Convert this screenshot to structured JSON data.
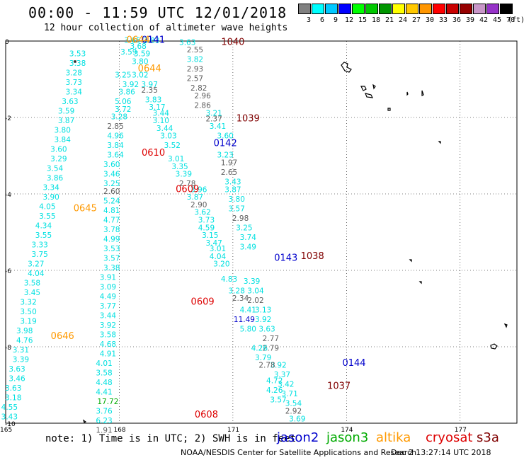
{
  "header": {
    "title": "00:00 - 11:59 UTC 12/01/2018",
    "subtitle": "12 hour collection of altimeter wave heights"
  },
  "legend": {
    "unit": "(ft)",
    "bins": [
      {
        "label": "3",
        "color": "#808080"
      },
      {
        "label": "6",
        "color": "#00ffff"
      },
      {
        "label": "9",
        "color": "#00c8ff"
      },
      {
        "label": "12",
        "color": "#0000ff"
      },
      {
        "label": "15",
        "color": "#00ff00"
      },
      {
        "label": "18",
        "color": "#00c800"
      },
      {
        "label": "21",
        "color": "#009600"
      },
      {
        "label": "24",
        "color": "#ffff00"
      },
      {
        "label": "27",
        "color": "#ffc800"
      },
      {
        "label": "30",
        "color": "#ff9600"
      },
      {
        "label": "33",
        "color": "#ff0000"
      },
      {
        "label": "36",
        "color": "#c80000"
      },
      {
        "label": "39",
        "color": "#960000"
      },
      {
        "label": "42",
        "color": "#c896c8"
      },
      {
        "label": "45",
        "color": "#9632c8"
      },
      {
        "label": "70",
        "color": "#000000"
      }
    ]
  },
  "map": {
    "lat_labels": [
      "0",
      "-2",
      "-4",
      "-6",
      "-8",
      "-10"
    ],
    "lon_labels": [
      "165",
      "168",
      "171",
      "174",
      "177"
    ],
    "lat_range": [
      0,
      -10
    ],
    "lon_range": [
      165,
      179
    ]
  },
  "colors": {
    "cyan": "#00e0e0",
    "gray": "#606060",
    "blue": "#0000cc",
    "green": "#00aa00",
    "orange": "#ff9900",
    "red": "#dd0000",
    "darkred": "#800000"
  },
  "passes": [
    {
      "label": "0141",
      "lon": 168.9,
      "lat": -0.05,
      "color": "#0000cc"
    },
    {
      "label": "0644",
      "lon": 168.5,
      "lat": -0.05,
      "color": "#ff9900"
    },
    {
      "label": "1040",
      "lon": 171.0,
      "lat": -0.1,
      "color": "#800000"
    },
    {
      "label": "0644",
      "lon": 168.8,
      "lat": -0.8,
      "color": "#ff9900"
    },
    {
      "label": "1039",
      "lon": 171.4,
      "lat": -2.1,
      "color": "#800000"
    },
    {
      "label": "0142",
      "lon": 170.8,
      "lat": -2.75,
      "color": "#0000cc"
    },
    {
      "label": "0610",
      "lon": 168.9,
      "lat": -3.0,
      "color": "#dd0000"
    },
    {
      "label": "0609",
      "lon": 169.8,
      "lat": -3.95,
      "color": "#dd0000"
    },
    {
      "label": "0645",
      "lon": 167.1,
      "lat": -4.45,
      "color": "#ff9900"
    },
    {
      "label": "1038",
      "lon": 173.1,
      "lat": -5.7,
      "color": "#800000"
    },
    {
      "label": "0143",
      "lon": 172.4,
      "lat": -5.75,
      "color": "#0000cc"
    },
    {
      "label": "0609",
      "lon": 170.2,
      "lat": -6.9,
      "color": "#dd0000"
    },
    {
      "label": "0646",
      "lon": 166.5,
      "lat": -7.8,
      "color": "#ff9900"
    },
    {
      "label": "0144",
      "lon": 174.2,
      "lat": -8.5,
      "color": "#0000cc"
    },
    {
      "label": "1037",
      "lon": 173.8,
      "lat": -9.1,
      "color": "#800000"
    },
    {
      "label": "0608",
      "lon": 170.3,
      "lat": -9.85,
      "color": "#dd0000"
    }
  ],
  "readings": [
    {
      "v": "3.83",
      "lon": 168.85,
      "lat": -0.06,
      "c": "cyan"
    },
    {
      "v": "3.63",
      "lon": 169.8,
      "lat": -0.1,
      "c": "cyan"
    },
    {
      "v": "2.55",
      "lon": 170.0,
      "lat": -0.3,
      "c": "gray"
    },
    {
      "v": "3.82",
      "lon": 170.0,
      "lat": -0.55,
      "c": "cyan"
    },
    {
      "v": "2.93",
      "lon": 170.0,
      "lat": -0.8,
      "c": "gray"
    },
    {
      "v": "2.57",
      "lon": 170.0,
      "lat": -1.05,
      "c": "gray"
    },
    {
      "v": "2.82",
      "lon": 170.1,
      "lat": -1.3,
      "c": "gray"
    },
    {
      "v": "2.96",
      "lon": 170.2,
      "lat": -1.5,
      "c": "gray"
    },
    {
      "v": "2.86",
      "lon": 170.2,
      "lat": -1.75,
      "c": "gray"
    },
    {
      "v": "3.21",
      "lon": 170.5,
      "lat": -1.95,
      "c": "cyan"
    },
    {
      "v": "2.37",
      "lon": 170.5,
      "lat": -2.1,
      "c": "gray"
    },
    {
      "v": "3.41",
      "lon": 170.6,
      "lat": -2.3,
      "c": "cyan"
    },
    {
      "v": "3.60",
      "lon": 170.8,
      "lat": -2.55,
      "c": "cyan"
    },
    {
      "v": "3.23",
      "lon": 170.8,
      "lat": -3.05,
      "c": "cyan"
    },
    {
      "v": "1.97",
      "lon": 170.9,
      "lat": -3.25,
      "c": "gray"
    },
    {
      "v": "2.65",
      "lon": 170.9,
      "lat": -3.5,
      "c": "gray"
    },
    {
      "v": "3.43",
      "lon": 171.0,
      "lat": -3.75,
      "c": "cyan"
    },
    {
      "v": "3.87",
      "lon": 171.0,
      "lat": -3.95,
      "c": "cyan"
    },
    {
      "v": "3.80",
      "lon": 171.1,
      "lat": -4.2,
      "c": "cyan"
    },
    {
      "v": "3.57",
      "lon": 171.1,
      "lat": -4.45,
      "c": "cyan"
    },
    {
      "v": "2.98",
      "lon": 171.2,
      "lat": -4.7,
      "c": "gray"
    },
    {
      "v": "3.25",
      "lon": 171.3,
      "lat": -4.95,
      "c": "cyan"
    },
    {
      "v": "3.74",
      "lon": 171.4,
      "lat": -5.2,
      "c": "cyan"
    },
    {
      "v": "3.49",
      "lon": 171.4,
      "lat": -5.45,
      "c": "cyan"
    },
    {
      "v": "3.39",
      "lon": 171.5,
      "lat": -6.35,
      "c": "cyan"
    },
    {
      "v": "3.04",
      "lon": 171.6,
      "lat": -6.6,
      "c": "cyan"
    },
    {
      "v": "2.02",
      "lon": 171.6,
      "lat": -6.85,
      "c": "gray"
    },
    {
      "v": "3.13",
      "lon": 171.8,
      "lat": -7.1,
      "c": "cyan"
    },
    {
      "v": "3.92",
      "lon": 171.8,
      "lat": -7.35,
      "c": "cyan"
    },
    {
      "v": "3.63",
      "lon": 171.9,
      "lat": -7.6,
      "c": "cyan"
    },
    {
      "v": "2.77",
      "lon": 172.0,
      "lat": -7.85,
      "c": "gray"
    },
    {
      "v": "2.79",
      "lon": 172.0,
      "lat": -8.1,
      "c": "gray"
    },
    {
      "v": "3.92",
      "lon": 172.2,
      "lat": -8.55,
      "c": "cyan"
    },
    {
      "v": "3.37",
      "lon": 172.3,
      "lat": -8.8,
      "c": "cyan"
    },
    {
      "v": "3.42",
      "lon": 172.4,
      "lat": -9.05,
      "c": "cyan"
    },
    {
      "v": "3.71",
      "lon": 172.5,
      "lat": -9.3,
      "c": "cyan"
    },
    {
      "v": "3.54",
      "lon": 172.6,
      "lat": -9.55,
      "c": "cyan"
    },
    {
      "v": "2.92",
      "lon": 172.6,
      "lat": -9.75,
      "c": "gray"
    },
    {
      "v": "3.69",
      "lon": 172.7,
      "lat": -9.95,
      "c": "cyan"
    },
    {
      "v": "3.65",
      "lon": 168.35,
      "lat": -0.05,
      "c": "cyan"
    },
    {
      "v": "3.68",
      "lon": 168.5,
      "lat": -0.2,
      "c": "cyan"
    },
    {
      "v": "3.59",
      "lon": 168.25,
      "lat": -0.35,
      "c": "cyan"
    },
    {
      "v": "3.59",
      "lon": 168.6,
      "lat": -0.4,
      "c": "cyan"
    },
    {
      "v": "3.80",
      "lon": 168.55,
      "lat": -0.6,
      "c": "cyan"
    },
    {
      "v": "3.25",
      "lon": 168.1,
      "lat": -0.95,
      "c": "cyan"
    },
    {
      "v": "3.02",
      "lon": 168.55,
      "lat": -0.95,
      "c": "cyan"
    },
    {
      "v": "3.92",
      "lon": 168.3,
      "lat": -1.2,
      "c": "cyan"
    },
    {
      "v": "3.97",
      "lon": 168.8,
      "lat": -1.2,
      "c": "cyan"
    },
    {
      "v": "3.86",
      "lon": 168.2,
      "lat": -1.4,
      "c": "cyan"
    },
    {
      "v": "2.35",
      "lon": 168.8,
      "lat": -1.35,
      "c": "gray"
    },
    {
      "v": "5.06",
      "lon": 168.1,
      "lat": -1.65,
      "c": "cyan"
    },
    {
      "v": "3.83",
      "lon": 168.9,
      "lat": -1.6,
      "c": "cyan"
    },
    {
      "v": "3.72",
      "lon": 168.1,
      "lat": -1.85,
      "c": "cyan"
    },
    {
      "v": "3.17",
      "lon": 169.0,
      "lat": -1.8,
      "c": "cyan"
    },
    {
      "v": "3.28",
      "lon": 168.0,
      "lat": -2.05,
      "c": "cyan"
    },
    {
      "v": "3.44",
      "lon": 169.1,
      "lat": -1.95,
      "c": "cyan"
    },
    {
      "v": "2.85",
      "lon": 167.9,
      "lat": -2.3,
      "c": "gray"
    },
    {
      "v": "3.10",
      "lon": 169.1,
      "lat": -2.15,
      "c": "cyan"
    },
    {
      "v": "4.96",
      "lon": 167.9,
      "lat": -2.55,
      "c": "cyan"
    },
    {
      "v": "3.44",
      "lon": 169.2,
      "lat": -2.35,
      "c": "cyan"
    },
    {
      "v": "3.84",
      "lon": 167.9,
      "lat": -2.8,
      "c": "cyan"
    },
    {
      "v": "3.03",
      "lon": 169.3,
      "lat": -2.55,
      "c": "cyan"
    },
    {
      "v": "3.64",
      "lon": 167.9,
      "lat": -3.05,
      "c": "cyan"
    },
    {
      "v": "3.52",
      "lon": 169.4,
      "lat": -2.8,
      "c": "cyan"
    },
    {
      "v": "3.60",
      "lon": 167.8,
      "lat": -3.3,
      "c": "cyan"
    },
    {
      "v": "3.01",
      "lon": 169.5,
      "lat": -3.15,
      "c": "cyan"
    },
    {
      "v": "3.46",
      "lon": 167.8,
      "lat": -3.55,
      "c": "cyan"
    },
    {
      "v": "3.35",
      "lon": 169.6,
      "lat": -3.35,
      "c": "cyan"
    },
    {
      "v": "3.25",
      "lon": 167.8,
      "lat": -3.8,
      "c": "cyan"
    },
    {
      "v": "3.39",
      "lon": 169.7,
      "lat": -3.55,
      "c": "cyan"
    },
    {
      "v": "2.60",
      "lon": 167.8,
      "lat": -4.0,
      "c": "gray"
    },
    {
      "v": "2.78",
      "lon": 169.8,
      "lat": -3.8,
      "c": "gray"
    },
    {
      "v": "3.96",
      "lon": 170.1,
      "lat": -3.95,
      "c": "cyan"
    },
    {
      "v": "5.24",
      "lon": 167.8,
      "lat": -4.25,
      "c": "cyan"
    },
    {
      "v": "3.87",
      "lon": 170.0,
      "lat": -4.15,
      "c": "cyan"
    },
    {
      "v": "4.81",
      "lon": 167.8,
      "lat": -4.5,
      "c": "cyan"
    },
    {
      "v": "2.90",
      "lon": 170.1,
      "lat": -4.35,
      "c": "gray"
    },
    {
      "v": "4.77",
      "lon": 167.8,
      "lat": -4.75,
      "c": "cyan"
    },
    {
      "v": "3.62",
      "lon": 170.2,
      "lat": -4.55,
      "c": "cyan"
    },
    {
      "v": "3.78",
      "lon": 167.8,
      "lat": -5.0,
      "c": "cyan"
    },
    {
      "v": "3.73",
      "lon": 170.3,
      "lat": -4.75,
      "c": "cyan"
    },
    {
      "v": "4.99",
      "lon": 167.8,
      "lat": -5.25,
      "c": "cyan"
    },
    {
      "v": "4.59",
      "lon": 170.3,
      "lat": -4.95,
      "c": "cyan"
    },
    {
      "v": "3.53",
      "lon": 167.8,
      "lat": -5.5,
      "c": "cyan"
    },
    {
      "v": "3.15",
      "lon": 170.4,
      "lat": -5.15,
      "c": "cyan"
    },
    {
      "v": "3.57",
      "lon": 167.8,
      "lat": -5.75,
      "c": "cyan"
    },
    {
      "v": "3.47",
      "lon": 170.5,
      "lat": -5.35,
      "c": "cyan"
    },
    {
      "v": "3.38",
      "lon": 167.8,
      "lat": -6.0,
      "c": "cyan"
    },
    {
      "v": "3.01",
      "lon": 170.6,
      "lat": -5.5,
      "c": "cyan"
    },
    {
      "v": "4.04",
      "lon": 170.6,
      "lat": -5.7,
      "c": "cyan"
    },
    {
      "v": "3.91",
      "lon": 167.7,
      "lat": -6.25,
      "c": "cyan"
    },
    {
      "v": "3.20",
      "lon": 170.7,
      "lat": -5.9,
      "c": "cyan"
    },
    {
      "v": "3.09",
      "lon": 167.7,
      "lat": -6.5,
      "c": "cyan"
    },
    {
      "v": "4.83",
      "lon": 170.9,
      "lat": -6.3,
      "c": "cyan"
    },
    {
      "v": "4.49",
      "lon": 167.7,
      "lat": -6.75,
      "c": "cyan"
    },
    {
      "v": "3.28",
      "lon": 171.1,
      "lat": -6.6,
      "c": "cyan"
    },
    {
      "v": "3.77",
      "lon": 167.7,
      "lat": -7.0,
      "c": "cyan"
    },
    {
      "v": "2.34",
      "lon": 171.2,
      "lat": -6.8,
      "c": "gray"
    },
    {
      "v": "3.44",
      "lon": 167.7,
      "lat": -7.25,
      "c": "cyan"
    },
    {
      "v": "4.41",
      "lon": 171.4,
      "lat": -7.1,
      "c": "cyan"
    },
    {
      "v": "3.92",
      "lon": 167.7,
      "lat": -7.5,
      "c": "cyan"
    },
    {
      "v": "11.49",
      "lon": 171.3,
      "lat": -7.35,
      "c": "blue"
    },
    {
      "v": "3.58",
      "lon": 167.7,
      "lat": -7.75,
      "c": "cyan"
    },
    {
      "v": "5.80",
      "lon": 171.4,
      "lat": -7.6,
      "c": "cyan"
    },
    {
      "v": "4.68",
      "lon": 167.7,
      "lat": -8.0,
      "c": "cyan"
    },
    {
      "v": "4.91",
      "lon": 167.7,
      "lat": -8.25,
      "c": "cyan"
    },
    {
      "v": "4.01",
      "lon": 167.6,
      "lat": -8.5,
      "c": "cyan"
    },
    {
      "v": "4.26",
      "lon": 171.7,
      "lat": -8.1,
      "c": "cyan"
    },
    {
      "v": "3.58",
      "lon": 167.6,
      "lat": -8.75,
      "c": "cyan"
    },
    {
      "v": "3.79",
      "lon": 171.8,
      "lat": -8.35,
      "c": "cyan"
    },
    {
      "v": "4.48",
      "lon": 167.6,
      "lat": -9.0,
      "c": "cyan"
    },
    {
      "v": "2.78",
      "lon": 171.9,
      "lat": -8.55,
      "c": "gray"
    },
    {
      "v": "4.41",
      "lon": 167.6,
      "lat": -9.25,
      "c": "cyan"
    },
    {
      "v": "4.72",
      "lon": 172.1,
      "lat": -8.95,
      "c": "cyan"
    },
    {
      "v": "17.72",
      "lon": 167.7,
      "lat": -9.5,
      "c": "green"
    },
    {
      "v": "4.26",
      "lon": 172.1,
      "lat": -9.2,
      "c": "cyan"
    },
    {
      "v": "3.76",
      "lon": 167.6,
      "lat": -9.75,
      "c": "cyan"
    },
    {
      "v": "3.57",
      "lon": 172.2,
      "lat": -9.45,
      "c": "cyan"
    },
    {
      "v": "6.23",
      "lon": 167.6,
      "lat": -10.0,
      "c": "cyan"
    },
    {
      "v": "1.91",
      "lon": 167.6,
      "lat": -10.25,
      "c": "gray"
    },
    {
      "v": "3.53",
      "lon": 166.9,
      "lat": -0.4,
      "c": "cyan"
    },
    {
      "v": "3.38",
      "lon": 166.9,
      "lat": -0.65,
      "c": "cyan"
    },
    {
      "v": "3.28",
      "lon": 166.8,
      "lat": -0.9,
      "c": "cyan"
    },
    {
      "v": "3.73",
      "lon": 166.8,
      "lat": -1.15,
      "c": "cyan"
    },
    {
      "v": "3.34",
      "lon": 166.8,
      "lat": -1.4,
      "c": "cyan"
    },
    {
      "v": "3.63",
      "lon": 166.7,
      "lat": -1.65,
      "c": "cyan"
    },
    {
      "v": "3.59",
      "lon": 166.6,
      "lat": -1.9,
      "c": "cyan"
    },
    {
      "v": "3.87",
      "lon": 166.6,
      "lat": -2.15,
      "c": "cyan"
    },
    {
      "v": "3.80",
      "lon": 166.5,
      "lat": -2.4,
      "c": "cyan"
    },
    {
      "v": "3.84",
      "lon": 166.5,
      "lat": -2.65,
      "c": "cyan"
    },
    {
      "v": "3.60",
      "lon": 166.4,
      "lat": -2.9,
      "c": "cyan"
    },
    {
      "v": "3.29",
      "lon": 166.4,
      "lat": -3.15,
      "c": "cyan"
    },
    {
      "v": "3.54",
      "lon": 166.3,
      "lat": -3.4,
      "c": "cyan"
    },
    {
      "v": "3.86",
      "lon": 166.3,
      "lat": -3.65,
      "c": "cyan"
    },
    {
      "v": "3.34",
      "lon": 166.2,
      "lat": -3.9,
      "c": "cyan"
    },
    {
      "v": "3.90",
      "lon": 166.2,
      "lat": -4.15,
      "c": "cyan"
    },
    {
      "v": "4.05",
      "lon": 166.1,
      "lat": -4.4,
      "c": "cyan"
    },
    {
      "v": "3.55",
      "lon": 166.1,
      "lat": -4.65,
      "c": "cyan"
    },
    {
      "v": "4.34",
      "lon": 166.0,
      "lat": -4.9,
      "c": "cyan"
    },
    {
      "v": "3.55",
      "lon": 166.0,
      "lat": -5.15,
      "c": "cyan"
    },
    {
      "v": "3.33",
      "lon": 165.9,
      "lat": -5.4,
      "c": "cyan"
    },
    {
      "v": "3.75",
      "lon": 165.9,
      "lat": -5.65,
      "c": "cyan"
    },
    {
      "v": "3.27",
      "lon": 165.8,
      "lat": -5.9,
      "c": "cyan"
    },
    {
      "v": "4.04",
      "lon": 165.8,
      "lat": -6.15,
      "c": "cyan"
    },
    {
      "v": "3.58",
      "lon": 165.7,
      "lat": -6.4,
      "c": "cyan"
    },
    {
      "v": "3.45",
      "lon": 165.7,
      "lat": -6.65,
      "c": "cyan"
    },
    {
      "v": "3.32",
      "lon": 165.6,
      "lat": -6.9,
      "c": "cyan"
    },
    {
      "v": "3.50",
      "lon": 165.6,
      "lat": -7.15,
      "c": "cyan"
    },
    {
      "v": "3.19",
      "lon": 165.6,
      "lat": -7.4,
      "c": "cyan"
    },
    {
      "v": "3.98",
      "lon": 165.5,
      "lat": -7.65,
      "c": "cyan"
    },
    {
      "v": "4.76",
      "lon": 165.5,
      "lat": -7.9,
      "c": "cyan"
    },
    {
      "v": "3.31",
      "lon": 165.4,
      "lat": -8.15,
      "c": "cyan"
    },
    {
      "v": "3.39",
      "lon": 165.4,
      "lat": -8.4,
      "c": "cyan"
    },
    {
      "v": "3.63",
      "lon": 165.3,
      "lat": -8.65,
      "c": "cyan"
    },
    {
      "v": "3.46",
      "lon": 165.3,
      "lat": -8.9,
      "c": "cyan"
    },
    {
      "v": "3.63",
      "lon": 165.2,
      "lat": -9.15,
      "c": "cyan"
    },
    {
      "v": "3.18",
      "lon": 165.2,
      "lat": -9.4,
      "c": "cyan"
    },
    {
      "v": "4.55",
      "lon": 165.1,
      "lat": -9.65,
      "c": "cyan"
    },
    {
      "v": "3.43",
      "lon": 165.1,
      "lat": -9.9,
      "c": "cyan"
    }
  ],
  "footer": {
    "note": "note: 1) Time is in UTC; 2) SWH is in feet",
    "credit": "NOAA/NESDIS Center for Satellite Applications and Research",
    "stamp": "Dec  2 13:27:14 UTC 2018",
    "satellites": [
      {
        "name": "jason2",
        "color": "#0000cc"
      },
      {
        "name": "jason3",
        "color": "#00aa00"
      },
      {
        "name": "altika",
        "color": "#ff9900"
      },
      {
        "name": "cryosat",
        "color": "#dd0000"
      },
      {
        "name": "s3a",
        "color": "#800000"
      }
    ]
  }
}
